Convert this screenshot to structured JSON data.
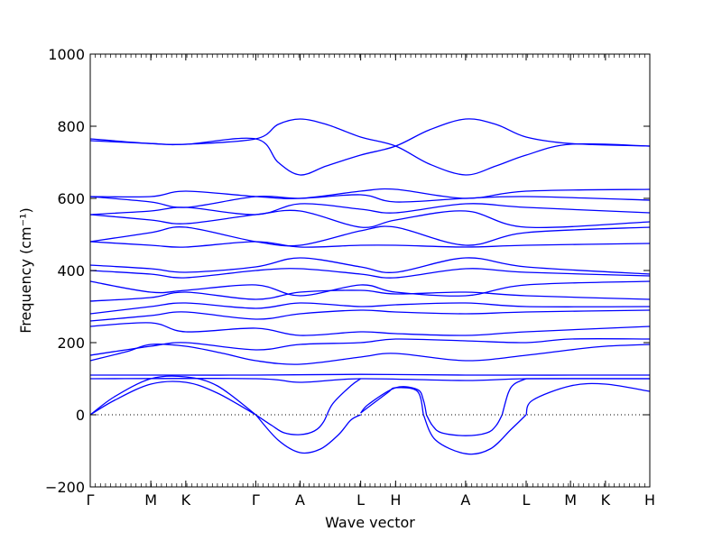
{
  "chart_data": {
    "type": "line",
    "xlabel": "Wave vector",
    "ylabel": "Frequency (cm⁻¹)",
    "ylim": [
      -200,
      1000
    ],
    "y_ticks": [
      -200,
      0,
      200,
      400,
      600,
      800,
      1000
    ],
    "x_ticks": [
      {
        "label": "Γ",
        "x": 0.0
      },
      {
        "label": "M",
        "x": 1.0
      },
      {
        "label": "K",
        "x": 1.577
      },
      {
        "label": "Γ",
        "x": 2.732
      },
      {
        "label": "A",
        "x": 3.464
      },
      {
        "label": "L",
        "x": 4.464
      },
      {
        "label": "H",
        "x": 5.041
      },
      {
        "label": "A",
        "x": 6.196
      },
      {
        "label": "L",
        "x": 7.196
      },
      {
        "label": "M",
        "x": 7.928
      },
      {
        "label": "K",
        "x": 8.505
      },
      {
        "label": "H",
        "x": 9.237
      }
    ],
    "xlim": [
      0,
      9.237
    ],
    "zero_line": true,
    "series_color": "#0000ff",
    "series": [
      {
        "x": [
          0,
          0.4,
          1.0,
          1.577,
          2.1,
          2.732
        ],
        "y": [
          0,
          50,
          100,
          105,
          80,
          0
        ]
      },
      {
        "x": [
          0,
          0.4,
          1.0,
          1.577,
          2.1,
          2.732
        ],
        "y": [
          0,
          40,
          85,
          90,
          60,
          0
        ]
      },
      {
        "x": [
          2.732,
          3.0,
          3.2,
          3.464,
          3.7,
          3.85,
          4.0,
          4.3,
          4.464
        ],
        "y": [
          0,
          -30,
          -50,
          -55,
          -45,
          -20,
          30,
          80,
          100
        ]
      },
      {
        "x": [
          2.732,
          3.1,
          3.464,
          3.8,
          4.1,
          4.3,
          4.464
        ],
        "y": [
          0,
          -70,
          -105,
          -95,
          -55,
          -15,
          0
        ]
      },
      {
        "x": [
          4.464,
          4.6,
          5.041,
          5.4,
          5.5,
          5.55
        ],
        "y": [
          5,
          30,
          75,
          70,
          40,
          0
        ]
      },
      {
        "x": [
          4.464,
          4.9,
          5.041,
          5.4,
          5.5
        ],
        "y": [
          5,
          60,
          75,
          65,
          0
        ]
      },
      {
        "x": [
          5.55,
          5.65,
          5.8,
          6.196,
          6.55,
          6.7,
          6.8
        ],
        "y": [
          0,
          -30,
          -50,
          -58,
          -50,
          -30,
          0
        ]
      },
      {
        "x": [
          5.5,
          5.7,
          6.196,
          6.6,
          6.95,
          7.196
        ],
        "y": [
          0,
          -70,
          -108,
          -95,
          -40,
          0
        ]
      },
      {
        "x": [
          6.8,
          6.9,
          7.0,
          7.196
        ],
        "y": [
          0,
          60,
          85,
          100
        ]
      },
      {
        "x": [
          7.196,
          7.3,
          7.928,
          8.505,
          9.237
        ],
        "y": [
          0,
          40,
          80,
          85,
          65
        ]
      },
      {
        "x": [
          7.196,
          7.5,
          7.928,
          8.505,
          9.237
        ],
        "y": [
          100,
          100,
          100,
          100,
          100
        ]
      },
      {
        "x": [
          0,
          2.732,
          3.464,
          4.464,
          6.196,
          7.196,
          9.237
        ],
        "y": [
          100,
          100,
          90,
          100,
          95,
          100,
          100
        ]
      },
      {
        "x": [
          0,
          1.0,
          2.732,
          4.464,
          6.196,
          9.237
        ],
        "y": [
          110,
          110,
          110,
          112,
          110,
          110
        ]
      },
      {
        "x": [
          0,
          0.6,
          1.0,
          1.577,
          2.2,
          2.732,
          3.464,
          4.464,
          5.041,
          6.196,
          7.196,
          7.928,
          8.505,
          9.237
        ],
        "y": [
          150,
          175,
          195,
          190,
          170,
          150,
          140,
          160,
          170,
          150,
          165,
          180,
          190,
          195
        ]
      },
      {
        "x": [
          0,
          1.0,
          1.577,
          2.732,
          3.464,
          4.464,
          5.041,
          6.196,
          7.196,
          7.928,
          9.237
        ],
        "y": [
          165,
          190,
          200,
          180,
          195,
          200,
          210,
          205,
          200,
          210,
          210
        ]
      },
      {
        "x": [
          0,
          1.0,
          1.577,
          2.732,
          3.464,
          4.464,
          5.041,
          6.196,
          7.196,
          9.237
        ],
        "y": [
          245,
          255,
          230,
          240,
          220,
          230,
          225,
          220,
          230,
          245
        ]
      },
      {
        "x": [
          0,
          1.0,
          1.577,
          2.732,
          3.464,
          4.464,
          5.041,
          6.196,
          7.196,
          9.237
        ],
        "y": [
          260,
          275,
          285,
          265,
          280,
          290,
          285,
          280,
          285,
          290
        ]
      },
      {
        "x": [
          0,
          1.0,
          1.577,
          2.732,
          3.464,
          4.464,
          5.041,
          6.196,
          7.196,
          9.237
        ],
        "y": [
          280,
          300,
          310,
          295,
          310,
          300,
          305,
          310,
          300,
          300
        ]
      },
      {
        "x": [
          0,
          1.0,
          1.577,
          2.732,
          3.464,
          4.464,
          5.041,
          6.196,
          7.196,
          9.237
        ],
        "y": [
          315,
          325,
          340,
          320,
          340,
          345,
          335,
          340,
          330,
          320
        ]
      },
      {
        "x": [
          0,
          1.0,
          1.577,
          2.732,
          3.464,
          4.464,
          5.041,
          6.196,
          7.196,
          9.237
        ],
        "y": [
          370,
          340,
          345,
          360,
          330,
          360,
          340,
          330,
          360,
          370
        ]
      },
      {
        "x": [
          0,
          1.0,
          1.577,
          2.732,
          3.464,
          4.464,
          5.041,
          6.196,
          7.196,
          9.237
        ],
        "y": [
          400,
          390,
          380,
          400,
          405,
          390,
          380,
          405,
          395,
          385
        ]
      },
      {
        "x": [
          0,
          1.0,
          1.577,
          2.732,
          3.464,
          4.464,
          5.041,
          6.196,
          7.196,
          9.237
        ],
        "y": [
          415,
          405,
          395,
          410,
          435,
          410,
          395,
          435,
          410,
          390
        ]
      },
      {
        "x": [
          0,
          1.0,
          1.577,
          2.732,
          3.464,
          4.464,
          5.041,
          6.196,
          7.196,
          9.237
        ],
        "y": [
          480,
          470,
          465,
          480,
          465,
          470,
          470,
          465,
          470,
          475
        ]
      },
      {
        "x": [
          0,
          1.0,
          1.577,
          2.732,
          3.464,
          4.464,
          5.041,
          6.196,
          7.196,
          9.237
        ],
        "y": [
          480,
          505,
          520,
          480,
          470,
          510,
          520,
          470,
          505,
          520
        ]
      },
      {
        "x": [
          0,
          1.0,
          1.577,
          2.732,
          3.464,
          4.464,
          5.041,
          6.196,
          7.196,
          9.237
        ],
        "y": [
          555,
          540,
          530,
          555,
          565,
          520,
          540,
          565,
          520,
          535
        ]
      },
      {
        "x": [
          0,
          1.0,
          1.577,
          2.732,
          3.464,
          4.464,
          5.041,
          6.196,
          7.196,
          9.237
        ],
        "y": [
          555,
          565,
          575,
          555,
          585,
          570,
          560,
          585,
          575,
          560
        ]
      },
      {
        "x": [
          0,
          1.0,
          1.577,
          2.732,
          3.464,
          4.464,
          5.041,
          6.196,
          7.196,
          9.237
        ],
        "y": [
          605,
          605,
          620,
          605,
          600,
          620,
          625,
          600,
          620,
          625
        ]
      },
      {
        "x": [
          0,
          1.0,
          1.577,
          2.732,
          3.464,
          4.464,
          5.041,
          6.196,
          7.196,
          9.237
        ],
        "y": [
          605,
          590,
          575,
          605,
          600,
          610,
          590,
          600,
          605,
          595
        ]
      },
      {
        "x": [
          0,
          1.0,
          1.577,
          2.732,
          3.1,
          3.464,
          3.9,
          4.464,
          5.041,
          5.6,
          6.196,
          6.7,
          7.196,
          7.928,
          9.237
        ],
        "y": [
          765,
          752,
          750,
          765,
          700,
          665,
          690,
          720,
          745,
          790,
          820,
          805,
          770,
          752,
          745
        ]
      },
      {
        "x": [
          0,
          1.0,
          1.577,
          2.732,
          3.1,
          3.464,
          3.9,
          4.464,
          5.041,
          5.6,
          6.196,
          6.7,
          7.196,
          7.928,
          9.237
        ],
        "y": [
          760,
          752,
          750,
          765,
          805,
          820,
          805,
          770,
          745,
          695,
          665,
          690,
          720,
          750,
          745
        ]
      }
    ]
  }
}
